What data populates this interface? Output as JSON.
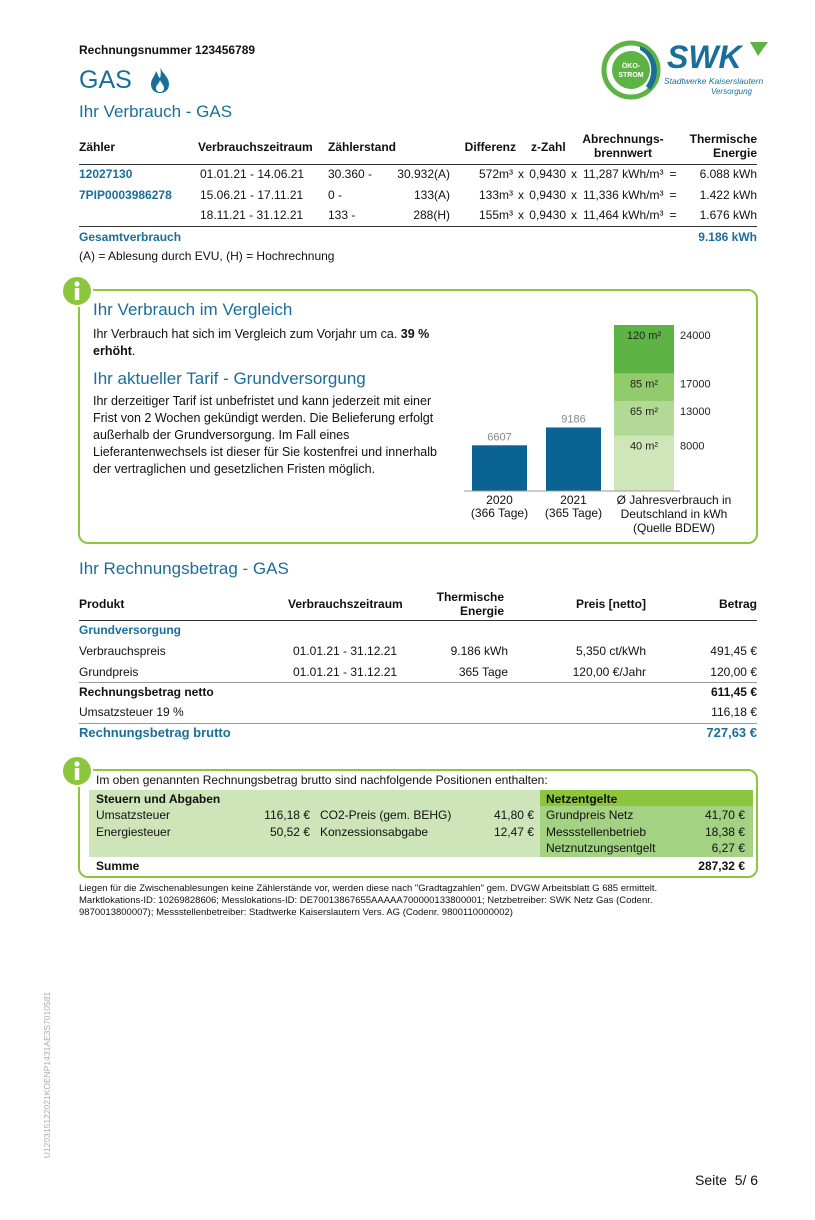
{
  "header": {
    "invoice_number": "Rechnungsnummer 123456789",
    "title": "GAS",
    "section_title": "Ihr Verbrauch - GAS"
  },
  "logo": {
    "badge_top": "ÖKO-",
    "badge_bottom": "STROM",
    "brand": "SWK",
    "tagline": "Stadtwerke Kaiserslautern",
    "tagline_sub": "Versorgung"
  },
  "consumption": {
    "columns": [
      "Zähler",
      "Verbrauchszeitraum",
      "Zählerstand",
      "Differenz",
      "z-Zahl",
      "Abrechnungs- brennwert",
      "Thermische Energie"
    ],
    "rows": [
      [
        "12027130",
        "01.01.21 - 14.06.21",
        "30.360 -",
        "30.932(A)",
        "572m³",
        "x",
        "0,9430",
        "x",
        "11,287 kWh/m³",
        "=",
        "6.088 kWh"
      ],
      [
        "7PIP0003986278",
        "15.06.21 - 17.11.21",
        "0 -",
        "133(A)",
        "133m³",
        "x",
        "0,9430",
        "x",
        "11,336 kWh/m³",
        "=",
        "1.422 kWh"
      ],
      [
        null,
        "18.11.21 - 31.12.21",
        "133 -",
        "288(H)",
        "155m³",
        "x",
        "0,9430",
        "x",
        "11,464 kWh/m³",
        "=",
        "1.676 kWh"
      ]
    ],
    "total_label": "Gesamtverbrauch",
    "total": "9.186 kWh",
    "legend": "(A) = Ablesung durch EVU, (H) = Hochrechnung"
  },
  "comparison": {
    "title": "Ihr Verbrauch im Vergleich",
    "text": "Ihr Verbrauch hat sich im Vergleich zum Vorjahr um ca.",
    "highlight": "39 % erhöht",
    "text_end": ".",
    "tariff_title": "Ihr aktueller Tarif - Grundversorgung",
    "tariff_text": "Ihr derzeitiger Tarif ist unbefristet und kann jederzeit mit einer Frist von 2 Wochen gekündigt werden. Die Belieferung erfolgt außerhalb der Grundversorgung. Im Fall eines Lieferantenwechsels ist dieser für Sie kostenfrei und innerhalb der vertraglichen und gesetzlichen Fristen möglich."
  },
  "chart_data": {
    "type": "bar",
    "categories": [
      "2020",
      "2021"
    ],
    "category_notes": [
      "(366 Tage)",
      "(365 Tage)"
    ],
    "values": [
      6607,
      9186
    ],
    "color": "#0b6394",
    "reference": {
      "label": "Ø Jahresverbrauch in Deutschland in kWh (Quelle BDEW)",
      "segments": [
        {
          "name": "40 m²",
          "value": 8000,
          "color": "#cfe6b8"
        },
        {
          "name": "65 m²",
          "value": 13000,
          "color": "#b2da96"
        },
        {
          "name": "85 m²",
          "value": 17000,
          "color": "#92cb6c"
        },
        {
          "name": "120 m²",
          "value": 24000,
          "color": "#5db445"
        }
      ]
    }
  },
  "invoice": {
    "title": "Ihr Rechnungsbetrag - GAS",
    "columns": [
      "Produkt",
      "Verbrauchszeitraum",
      "Thermische Energie",
      "Preis [netto]",
      "Betrag"
    ],
    "group": "Grundversorgung",
    "rows": [
      [
        "Verbrauchspreis",
        "01.01.21 - 31.12.21",
        "9.186 kWh",
        "5,350 ct/kWh",
        "491,45 €"
      ],
      [
        "Grundpreis",
        "01.01.21 - 31.12.21",
        "365 Tage",
        "120,00 €/Jahr",
        "120,00 €"
      ]
    ],
    "net": [
      "Rechnungsbetrag netto",
      "611,45 €"
    ],
    "vat": [
      "Umsatzsteuer 19 %",
      "116,18 €"
    ],
    "gross": [
      "Rechnungsbetrag brutto",
      "727,63 €"
    ]
  },
  "taxes": {
    "intro": "Im oben genannten Rechnungsbetrag brutto sind nachfolgende Positionen enthalten:",
    "left_title": "Steuern und Abgaben",
    "right_title": "Netzentgelte",
    "left_items": [
      [
        "Umsatzsteuer",
        "116,18 €"
      ],
      [
        "Energiesteuer",
        "50,52 €"
      ]
    ],
    "middle_items": [
      [
        "CO2-Preis (gem. BEHG)",
        "41,80 €"
      ],
      [
        "Konzessionsabgabe",
        "12,47 €"
      ]
    ],
    "right_items": [
      [
        "Grundpreis Netz",
        "41,70 €"
      ],
      [
        "Messstellenbetrieb",
        "18,38 €"
      ],
      [
        "Netznutzungsentgelt",
        "6,27 €"
      ]
    ],
    "sum": [
      "Summe",
      "287,32 €"
    ]
  },
  "footnotes": [
    "Liegen für die Zwischenablesungen keine Zählerstände vor, werden diese nach \"Gradtagzahlen\" gem. DVGW Arbeitsblatt G 685 ermittelt.",
    "Marktlokations-ID: 10269828606; Messlokations-ID: DE70013867655AAAAA700000133800001; Netzbetreiber: SWK Netz Gas (Codenr. 9870013800007); Messstellenbetreiber: Stadtwerke Kaiserslautern Vers. AG (Codenr. 9800110000002)"
  ],
  "page": "Seite  5/ 6",
  "document_code": "U120315122021KOENP1431AE3S7010581"
}
